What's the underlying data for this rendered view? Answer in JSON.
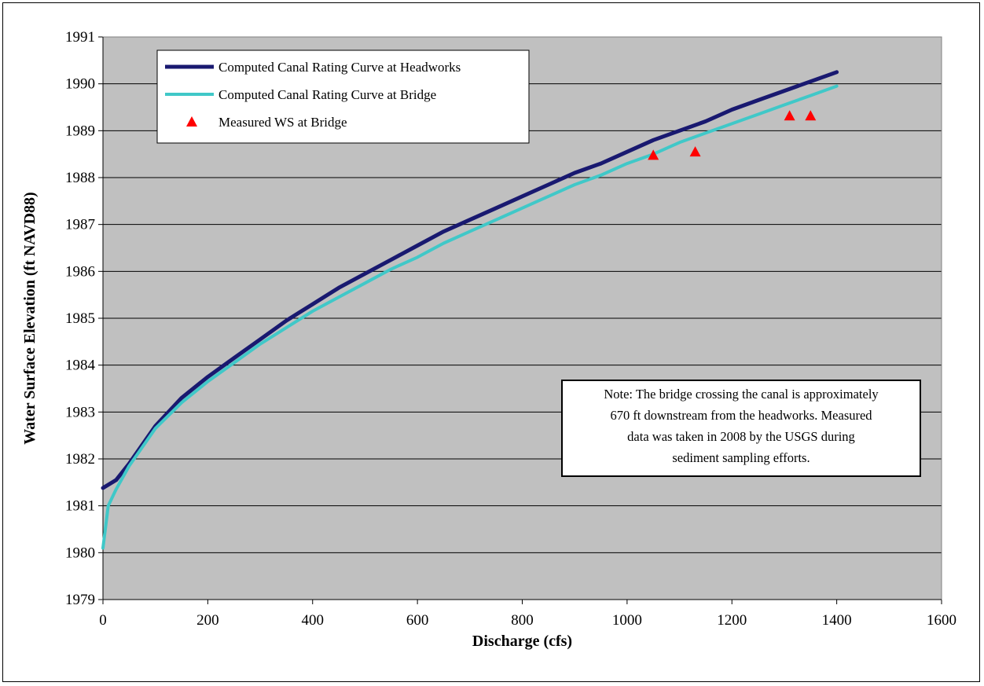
{
  "chart_data": {
    "type": "line",
    "title": "",
    "xlabel": "Discharge (cfs)",
    "ylabel": "Water Surface Elevation (ft NAVD88)",
    "xlim": [
      0,
      1600
    ],
    "ylim": [
      1979,
      1991
    ],
    "xticks": [
      "0",
      "200",
      "400",
      "600",
      "800",
      "1000",
      "1200",
      "1400",
      "1600"
    ],
    "yticks": [
      "1979",
      "1980",
      "1981",
      "1982",
      "1983",
      "1984",
      "1985",
      "1986",
      "1987",
      "1988",
      "1989",
      "1990",
      "1991"
    ],
    "grid": "horizontal",
    "plot_background": "#c0c0c0",
    "legend_position": "top-left",
    "series": [
      {
        "name": "Computed Canal Rating Curve at Headworks",
        "kind": "line",
        "color": "#191970",
        "x": [
          0,
          25,
          50,
          75,
          100,
          150,
          200,
          250,
          300,
          350,
          400,
          450,
          500,
          550,
          600,
          650,
          700,
          750,
          800,
          850,
          900,
          950,
          1000,
          1050,
          1100,
          1150,
          1200,
          1250,
          1300,
          1350,
          1400
        ],
        "y": [
          1981.38,
          1981.55,
          1981.9,
          1982.3,
          1982.7,
          1983.3,
          1983.75,
          1984.15,
          1984.55,
          1984.95,
          1985.3,
          1985.65,
          1985.95,
          1986.25,
          1986.55,
          1986.85,
          1987.1,
          1987.35,
          1987.6,
          1987.85,
          1988.1,
          1988.3,
          1988.55,
          1988.8,
          1989.0,
          1989.2,
          1989.45,
          1989.65,
          1989.85,
          1990.05,
          1990.25
        ]
      },
      {
        "name": "Computed Canal Rating Curve at Bridge",
        "kind": "line",
        "color": "#40c8c8",
        "x": [
          0,
          10,
          25,
          50,
          75,
          100,
          150,
          200,
          250,
          300,
          350,
          400,
          450,
          500,
          550,
          600,
          650,
          700,
          750,
          800,
          850,
          900,
          950,
          1000,
          1050,
          1100,
          1150,
          1200,
          1250,
          1300,
          1350,
          1400
        ],
        "y": [
          1980.1,
          1981.0,
          1981.35,
          1981.85,
          1982.25,
          1982.65,
          1983.2,
          1983.65,
          1984.05,
          1984.45,
          1984.8,
          1985.15,
          1985.45,
          1985.75,
          1986.05,
          1986.3,
          1986.6,
          1986.85,
          1987.1,
          1987.35,
          1987.6,
          1987.85,
          1988.05,
          1988.3,
          1988.5,
          1988.75,
          1988.95,
          1989.15,
          1989.35,
          1989.55,
          1989.75,
          1989.95
        ]
      },
      {
        "name": "Measured WS at Bridge",
        "kind": "marker",
        "color": "#ff0000",
        "x": [
          1050,
          1130,
          1310,
          1350
        ],
        "y": [
          1988.48,
          1988.55,
          1989.32,
          1989.32
        ]
      }
    ],
    "annotation": {
      "lines": [
        "Note: The bridge crossing the canal is approximately",
        "670 ft downstream from the headworks.  Measured",
        "data was taken in 2008 by the USGS during",
        "sediment sampling efforts."
      ]
    }
  }
}
